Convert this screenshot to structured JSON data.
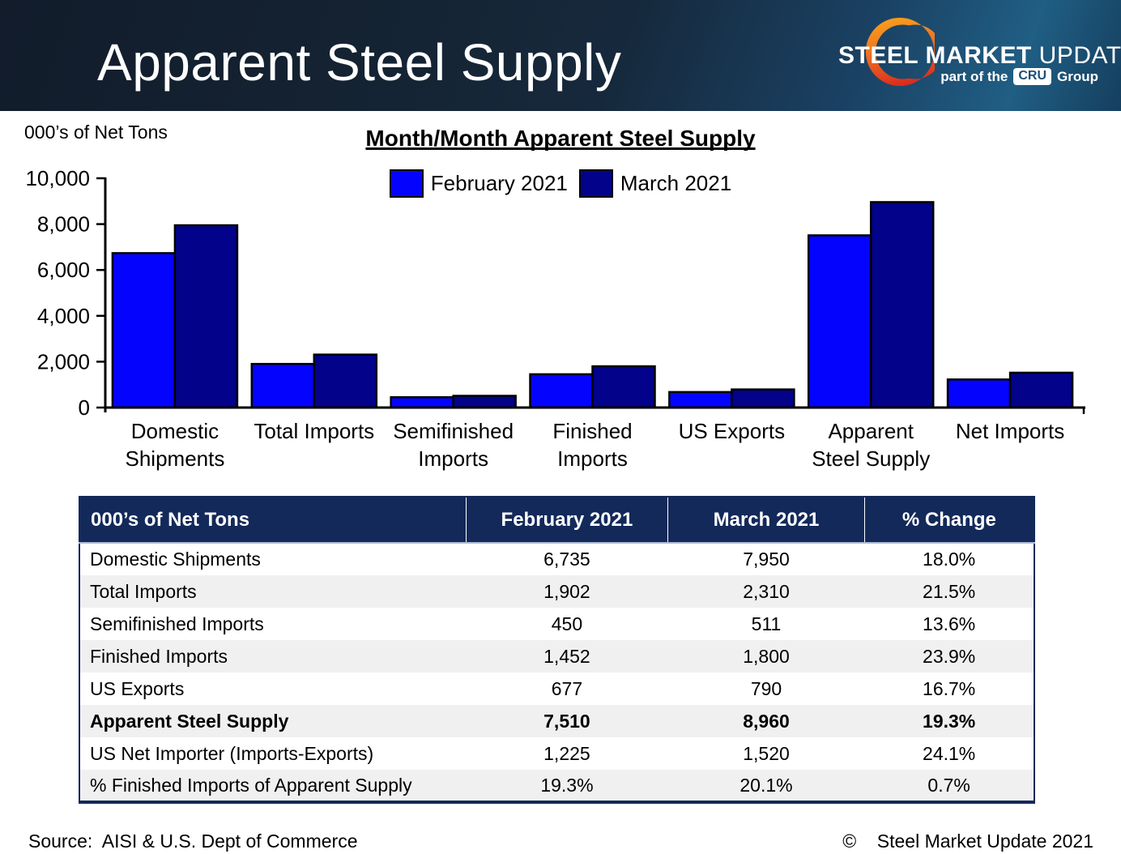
{
  "header": {
    "title": "Apparent Steel Supply",
    "logo": {
      "steel": "STEEL ",
      "market": "MARKET",
      "update": " UPDATE",
      "part_of_the": "part of the",
      "cru": "CRU",
      "group": "Group"
    }
  },
  "chart": {
    "units_label": "000’s of Net Tons",
    "title": "Month/Month Apparent Steel Supply"
  },
  "chart_data": {
    "type": "bar",
    "title": "Month/Month Apparent Steel Supply",
    "ylabel": "000’s of Net Tons",
    "xlabel": "",
    "ylim": [
      0,
      10000
    ],
    "ytick_interval": 2000,
    "ytick_labels": [
      "0",
      "2,000",
      "4,000",
      "6,000",
      "8,000",
      "10,000"
    ],
    "grid": false,
    "legend_position": "top-center",
    "categories": [
      "Domestic Shipments",
      "Total Imports",
      "Semifinished Imports",
      "Finished Imports",
      "US Exports",
      "Apparent Steel Supply",
      "Net Imports"
    ],
    "categories_wrapped": [
      [
        "Domestic",
        "Shipments"
      ],
      [
        "Total Imports"
      ],
      [
        "Semifinished",
        "Imports"
      ],
      [
        "Finished",
        "Imports"
      ],
      [
        "US Exports"
      ],
      [
        "Apparent",
        "Steel Supply"
      ],
      [
        "Net Imports"
      ]
    ],
    "series": [
      {
        "name": "February 2021",
        "color": "#0404FE",
        "values": [
          6735,
          1902,
          450,
          1452,
          677,
          7510,
          1225
        ]
      },
      {
        "name": "March 2021",
        "color": "#02028A",
        "values": [
          7950,
          2310,
          511,
          1800,
          790,
          8960,
          1520
        ]
      }
    ]
  },
  "table": {
    "headers": [
      "000’s of Net Tons",
      "February 2021",
      "March 2021",
      "% Change"
    ],
    "rows": [
      {
        "label": "Domestic Shipments",
        "values": [
          "6,735",
          "7,950",
          "18.0%"
        ],
        "bold": false
      },
      {
        "label": "Total Imports",
        "values": [
          "1,902",
          "2,310",
          "21.5%"
        ],
        "bold": false
      },
      {
        "label": "Semifinished Imports",
        "values": [
          "450",
          "511",
          "13.6%"
        ],
        "bold": false
      },
      {
        "label": "Finished Imports",
        "values": [
          "1,452",
          "1,800",
          "23.9%"
        ],
        "bold": false
      },
      {
        "label": "US Exports",
        "values": [
          "677",
          "790",
          "16.7%"
        ],
        "bold": false
      },
      {
        "label": "Apparent Steel Supply",
        "values": [
          "7,510",
          "8,960",
          "19.3%"
        ],
        "bold": true
      },
      {
        "label": "US Net Importer (Imports-Exports)",
        "values": [
          "1,225",
          "1,520",
          "24.1%"
        ],
        "bold": false
      },
      {
        "label": "% Finished Imports of Apparent Supply",
        "values": [
          "19.3%",
          "20.1%",
          "0.7%"
        ],
        "bold": false
      }
    ]
  },
  "footer": {
    "source": "Source:  AISI & U.S. Dept of Commerce",
    "copyright": "©    Steel Market Update 2021"
  },
  "colors": {
    "february_blue": "#0404FE",
    "march_navy": "#02028A",
    "table_header_navy": "#13295A",
    "row_alt_gray": "#F0F0F0",
    "logo_orange": "#F79A1C",
    "logo_red": "#D92B1F"
  }
}
